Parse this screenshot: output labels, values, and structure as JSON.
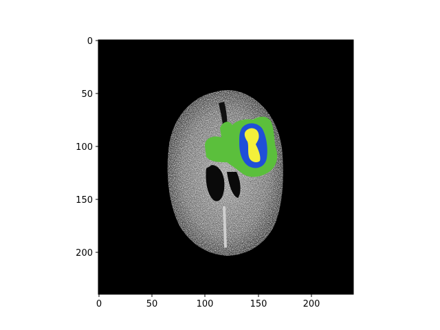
{
  "image": {
    "description_type": "axial brain MRI slice with tumor segmentation overlay",
    "background_color": "#000000",
    "overlay_colors": {
      "edema": "#5bbf3c",
      "enhancing": "#1f4fd8",
      "core": "#f4f03a"
    }
  },
  "axes": {
    "x_ticks": [
      "0",
      "50",
      "100",
      "150",
      "200"
    ],
    "y_ticks": [
      "0",
      "50",
      "100",
      "150",
      "200"
    ],
    "x_range": [
      0,
      240
    ],
    "y_range": [
      0,
      240
    ]
  }
}
